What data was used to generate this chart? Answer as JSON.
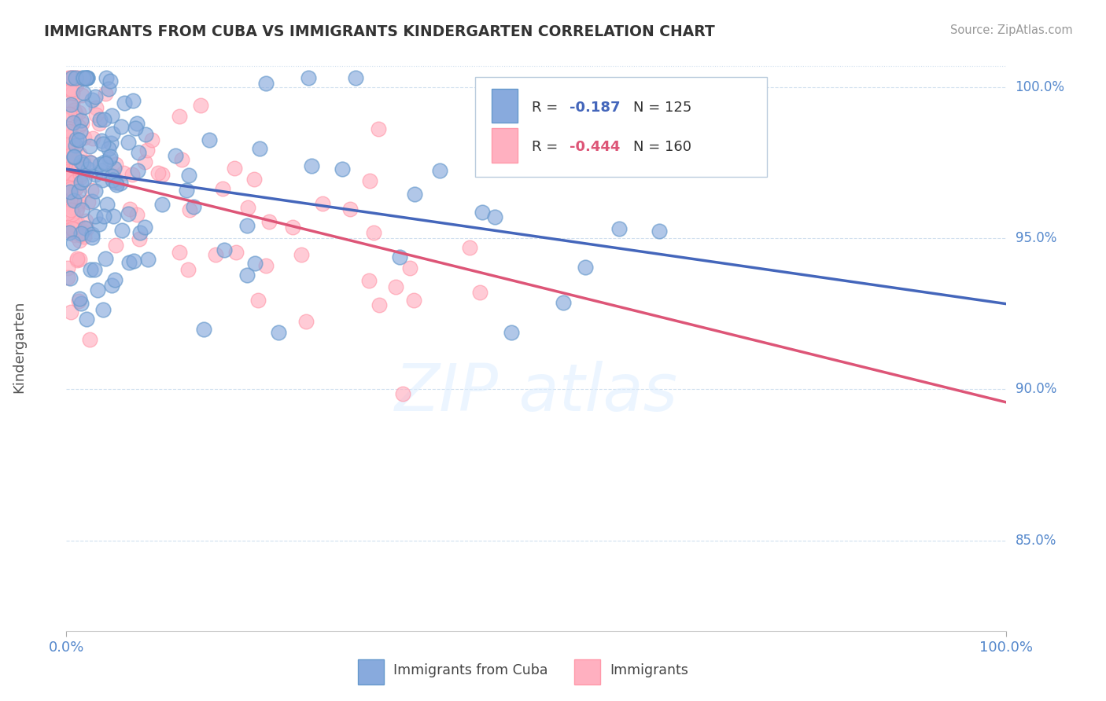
{
  "title": "IMMIGRANTS FROM CUBA VS IMMIGRANTS KINDERGARTEN CORRELATION CHART",
  "source": "Source: ZipAtlas.com",
  "ylabel": "Kindergarten",
  "legend_blue_label": "Immigrants from Cuba",
  "legend_pink_label": "Immigrants",
  "blue_color": "#88AADD",
  "blue_edge_color": "#6699CC",
  "pink_color": "#FFB0C0",
  "pink_edge_color": "#FF99AA",
  "blue_line_color": "#4466BB",
  "pink_line_color": "#DD5577",
  "tick_color": "#5588CC",
  "background_color": "#FFFFFF",
  "title_color": "#333333",
  "source_color": "#999999",
  "ylabel_color": "#555555",
  "gridline_color": "#CCDDEE",
  "watermark_color": "#DDEEFF",
  "xlim": [
    0.0,
    1.0
  ],
  "ylim": [
    0.82,
    1.008
  ],
  "right_yticks": [
    0.85,
    0.9,
    0.95,
    1.0
  ],
  "right_ytick_labels": [
    "85.0%",
    "90.0%",
    "95.0%",
    "100.0%"
  ],
  "legend_blue_R_val": "-0.187",
  "legend_blue_N": "125",
  "legend_pink_R_val": "-0.444",
  "legend_pink_N": "160",
  "blue_R": -0.187,
  "pink_R": -0.444,
  "N_blue": 125,
  "N_pink": 160,
  "seed": 42
}
